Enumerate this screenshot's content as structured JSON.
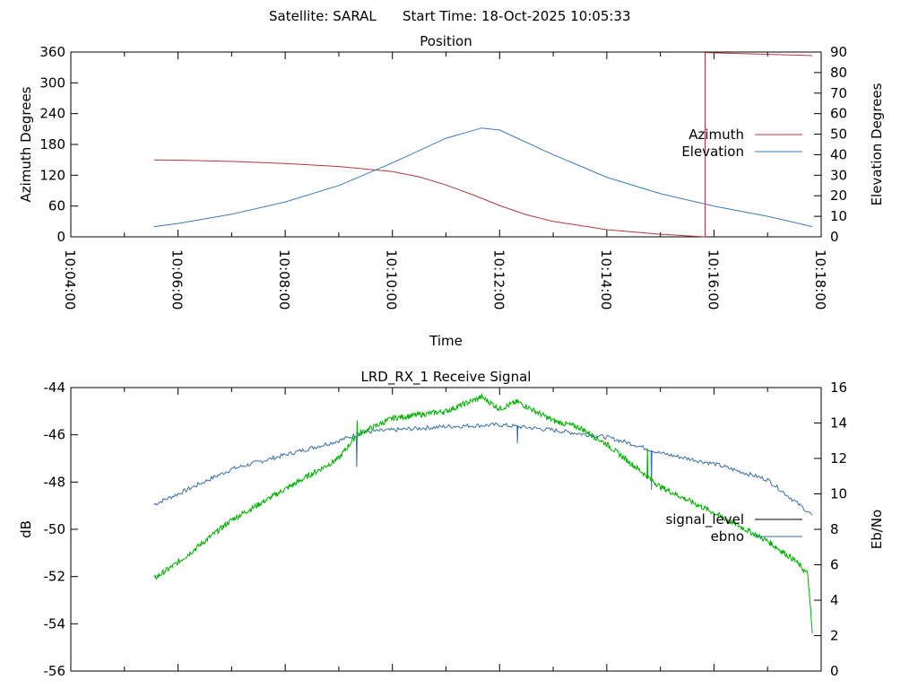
{
  "header": {
    "satellite_text": "Satellite: SARAL",
    "start_time_text": "Start Time: 18-Oct-2025 10:05:33"
  },
  "colors": {
    "azimuth": "#b03a3a",
    "elevation": "#3a78c0",
    "signal_level": "#000000",
    "ebno": "#3a6ea8",
    "green_trace": "#00b000",
    "axis": "#000000",
    "background": "#ffffff"
  },
  "chart_data": [
    {
      "type": "line",
      "title": "Position",
      "xlabel": "Time",
      "ylabel": "Azimuth Degrees",
      "y2label": "Elevation Degrees",
      "x_tick_labels": [
        "10:04:00",
        "10:06:00",
        "10:08:00",
        "10:10:00",
        "10:12:00",
        "10:14:00",
        "10:16:00",
        "10:18:00"
      ],
      "xlim": [
        "10:04:00",
        "10:18:00"
      ],
      "ylim": [
        0,
        360
      ],
      "y_ticks": [
        0,
        60,
        120,
        180,
        240,
        300,
        360
      ],
      "y2lim": [
        0,
        90
      ],
      "y2_ticks": [
        0,
        10,
        20,
        30,
        40,
        50,
        60,
        70,
        80,
        90
      ],
      "grid": false,
      "legend_position": "right",
      "series": [
        {
          "name": "Azimuth",
          "axis": "y",
          "x": [
            "10:05:33",
            "10:06:00",
            "10:07:00",
            "10:08:00",
            "10:09:00",
            "10:10:00",
            "10:10:30",
            "10:11:00",
            "10:11:30",
            "10:12:00",
            "10:12:30",
            "10:13:00",
            "10:14:00",
            "10:15:00",
            "10:15:50",
            "10:15:50",
            "10:17:50"
          ],
          "values": [
            150,
            149.5,
            147,
            143,
            137,
            127,
            117,
            101,
            82,
            61,
            43,
            30,
            14,
            5,
            0,
            359,
            353
          ]
        },
        {
          "name": "Elevation",
          "axis": "y2",
          "x": [
            "10:05:33",
            "10:06:00",
            "10:07:00",
            "10:08:00",
            "10:09:00",
            "10:10:00",
            "10:11:00",
            "10:11:40",
            "10:12:00",
            "10:13:00",
            "10:14:00",
            "10:15:00",
            "10:16:00",
            "10:17:00",
            "10:17:50"
          ],
          "values": [
            5,
            6.5,
            11,
            17,
            25,
            36,
            48,
            53,
            52,
            40,
            29,
            21,
            15,
            10,
            5
          ]
        }
      ]
    },
    {
      "type": "line",
      "title": "LRD_RX_1 Receive Signal",
      "ylabel": "dB",
      "y2label": "Eb/No",
      "ylim": [
        -56,
        -44
      ],
      "y_ticks": [
        -56,
        -54,
        -52,
        -50,
        -48,
        -46,
        -44
      ],
      "y2lim": [
        0,
        16
      ],
      "y2_ticks": [
        0,
        2,
        4,
        6,
        8,
        10,
        12,
        14,
        16
      ],
      "xlim": [
        "10:04:00",
        "10:18:00"
      ],
      "grid": false,
      "legend_position": "right",
      "series": [
        {
          "name": "signal_level",
          "axis": "y",
          "x": [],
          "values": []
        },
        {
          "name": "ebno",
          "axis": "y2",
          "x": [
            "10:05:33",
            "10:06:00",
            "10:07:00",
            "10:08:00",
            "10:09:00",
            "10:09:30",
            "10:10:00",
            "10:11:00",
            "10:12:00",
            "10:13:00",
            "10:14:00",
            "10:14:30",
            "10:15:00",
            "10:16:00",
            "10:17:00",
            "10:17:50"
          ],
          "values": [
            9.4,
            10,
            11.4,
            12.2,
            13,
            13.5,
            13.6,
            13.8,
            13.9,
            13.6,
            13.2,
            12.8,
            12.3,
            11.7,
            10.8,
            8.8
          ]
        },
        {
          "name": "",
          "axis": "y",
          "x": [
            "10:05:33",
            "10:06:00",
            "10:07:00",
            "10:08:00",
            "10:09:00",
            "10:09:20",
            "10:10:00",
            "10:11:00",
            "10:11:40",
            "10:12:00",
            "10:12:20",
            "10:13:00",
            "10:13:30",
            "10:14:00",
            "10:14:30",
            "10:15:00",
            "10:16:00",
            "10:17:00",
            "10:17:30",
            "10:17:45",
            "10:17:50"
          ],
          "values": [
            -52.1,
            -51.4,
            -49.6,
            -48.3,
            -47,
            -46,
            -45.3,
            -45,
            -44.4,
            -44.9,
            -44.6,
            -45.4,
            -45.7,
            -46.4,
            -47.3,
            -48.2,
            -49.3,
            -50.5,
            -51.3,
            -51.9,
            -54.4
          ]
        }
      ]
    }
  ]
}
